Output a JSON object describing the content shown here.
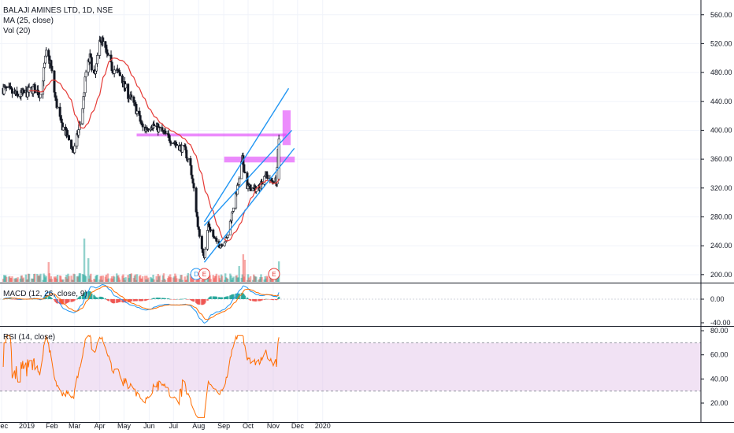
{
  "legend": {
    "symbol": "BALAJI AMINES LTD, 1D, NSE",
    "ma": "MA (25, close)",
    "vol": "Vol (20)",
    "macd": "MACD (12, 26, close, 9)",
    "rsi": "RSI (14, close)"
  },
  "colors": {
    "up": "#26a69a",
    "down": "#ef5350",
    "candle": "#131722",
    "ma": "#e53935",
    "trendline": "#2196f3",
    "zone": "#e040fb",
    "macd": "#2196f3",
    "signal": "#ff6d00",
    "rsi": "#ff6d00",
    "rsi_band": "#e1bee7",
    "event_dividend": "#2196f3",
    "event_earnings": "#e53935"
  },
  "events": [
    {
      "label": "D",
      "date": "2019-07-29"
    },
    {
      "label": "E",
      "date": "2019-08-08"
    },
    {
      "label": "E",
      "date": "2019-11-02"
    }
  ],
  "chart_data": [
    {
      "type": "candlestick",
      "title": "BALAJI AMINES LTD, 1D, NSE",
      "x_ticks": [
        "Dec",
        "2019",
        "Feb",
        "Mar",
        "Apr",
        "May",
        "Jun",
        "Jul",
        "Aug",
        "Sep",
        "Oct",
        "Nov",
        "Dec",
        "2020"
      ],
      "y_ticks": [
        "560.00",
        "520.00",
        "480.00",
        "440.00",
        "400.00",
        "360.00",
        "320.00",
        "280.00",
        "240.00",
        "200.00"
      ],
      "ylim": [
        190,
        575
      ],
      "grid": true,
      "close_path": [
        [
          "2018-12-01",
          458
        ],
        [
          "2018-12-10",
          455
        ],
        [
          "2018-12-20",
          448
        ],
        [
          "2019-01-01",
          452
        ],
        [
          "2019-01-10",
          458
        ],
        [
          "2019-01-18",
          450
        ],
        [
          "2019-01-25",
          505
        ],
        [
          "2019-01-30",
          495
        ],
        [
          "2019-02-05",
          445
        ],
        [
          "2019-02-12",
          410
        ],
        [
          "2019-02-20",
          392
        ],
        [
          "2019-02-28",
          370
        ],
        [
          "2019-03-05",
          395
        ],
        [
          "2019-03-10",
          420
        ],
        [
          "2019-03-15",
          480
        ],
        [
          "2019-03-20",
          500
        ],
        [
          "2019-03-26",
          472
        ],
        [
          "2019-04-02",
          530
        ],
        [
          "2019-04-08",
          510
        ],
        [
          "2019-04-15",
          488
        ],
        [
          "2019-04-25",
          478
        ],
        [
          "2019-05-05",
          452
        ],
        [
          "2019-05-15",
          432
        ],
        [
          "2019-05-25",
          400
        ],
        [
          "2019-06-05",
          408
        ],
        [
          "2019-06-15",
          400
        ],
        [
          "2019-06-25",
          390
        ],
        [
          "2019-07-05",
          380
        ],
        [
          "2019-07-15",
          372
        ],
        [
          "2019-07-22",
          350
        ],
        [
          "2019-07-28",
          300
        ],
        [
          "2019-08-02",
          250
        ],
        [
          "2019-08-08",
          225
        ],
        [
          "2019-08-13",
          270
        ],
        [
          "2019-08-20",
          250
        ],
        [
          "2019-08-27",
          240
        ],
        [
          "2019-09-05",
          250
        ],
        [
          "2019-09-12",
          290
        ],
        [
          "2019-09-20",
          330
        ],
        [
          "2019-09-24",
          360
        ],
        [
          "2019-09-30",
          322
        ],
        [
          "2019-10-08",
          318
        ],
        [
          "2019-10-15",
          322
        ],
        [
          "2019-10-22",
          340
        ],
        [
          "2019-10-29",
          330
        ],
        [
          "2019-11-05",
          330
        ],
        [
          "2019-11-08",
          388
        ]
      ],
      "volume_spikes": [
        {
          "date": "2019-01-27",
          "volume": 0.25
        },
        {
          "date": "2019-03-13",
          "volume": 0.55
        },
        {
          "date": "2019-03-17",
          "volume": 0.3
        },
        {
          "date": "2019-09-20",
          "volume": 0.2
        },
        {
          "date": "2019-09-25",
          "volume": 0.35
        },
        {
          "date": "2019-09-28",
          "volume": 0.28
        },
        {
          "date": "2019-11-08",
          "volume": 0.26
        }
      ],
      "volume_scale": [
        0,
        1
      ],
      "ma_period": 25,
      "trendlines": [
        {
          "from": [
            "2019-08-08",
            217
          ],
          "to": [
            "2019-11-27",
            375
          ]
        },
        {
          "from": [
            "2019-08-08",
            268
          ],
          "to": [
            "2019-11-24",
            400
          ]
        },
        {
          "from": [
            "2019-08-08",
            273
          ],
          "to": [
            "2019-11-20",
            458
          ]
        }
      ],
      "zones": [
        {
          "start": "2019-05-17",
          "end": "2019-11-17",
          "low": 392,
          "high": 395
        },
        {
          "start": "2019-09-02",
          "end": "2019-11-27",
          "low": 356,
          "high": 363
        },
        {
          "start": "2019-11-13",
          "end": "2019-11-22",
          "low": 380,
          "high": 427
        }
      ]
    },
    {
      "type": "line",
      "title": "MACD (12, 26, close, 9)",
      "y_ticks": [
        "0.00",
        "-40.00"
      ],
      "ylim": [
        -44,
        24
      ],
      "series": []
    },
    {
      "type": "line",
      "title": "RSI (14, close)",
      "y_ticks": [
        "80.00",
        "60.00",
        "40.00",
        "20.00"
      ],
      "ylim": [
        5,
        82
      ],
      "bands": [
        30,
        70
      ],
      "series": []
    }
  ]
}
